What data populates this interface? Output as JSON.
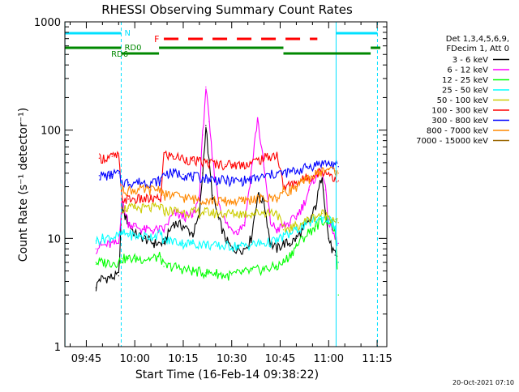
{
  "chart_data": {
    "type": "line",
    "title": "RHESSI Observing Summary Count Rates",
    "xlabel": "Start Time (16-Feb-14 09:38:22)",
    "ylabel": "Count Rate (s⁻¹ detector⁻¹)",
    "yscale": "log",
    "ylim": [
      1,
      1000
    ],
    "xlim_minutes": [
      "09:38",
      "11:18"
    ],
    "x_ticks": [
      "09:45",
      "10:00",
      "10:15",
      "10:30",
      "10:45",
      "11:00",
      "11:15"
    ],
    "y_ticks": [
      "1",
      "10",
      "100",
      "1000"
    ],
    "grid": false,
    "legend_position": "right",
    "legend_header": [
      "Det 1,3,4,5,6,9,",
      "FDecim 1, Att 0"
    ],
    "footer_date": "20-Oct-2021 07:10",
    "annotations": {
      "night": "N",
      "saa": "F",
      "rd0": "RD0",
      "rd6": "RD6"
    },
    "series": [
      {
        "name": "3 - 6 keV",
        "color": "#000000",
        "x": [
          "09:48",
          "09:49",
          "09:55",
          "09:56",
          "09:57",
          "09:58",
          "10:00",
          "10:03",
          "10:06",
          "10:09",
          "10:12",
          "10:15",
          "10:18",
          "10:20",
          "10:21",
          "10:22",
          "10:23",
          "10:24",
          "10:26",
          "10:28",
          "10:30",
          "10:32",
          "10:34",
          "10:36",
          "10:38",
          "10:40",
          "10:42",
          "10:44",
          "10:46",
          "10:48",
          "10:50",
          "10:52",
          "10:54",
          "10:56",
          "10:58",
          "10:59",
          "11:00",
          "11:01",
          "11:02",
          "11:03"
        ],
        "values": [
          3.5,
          4.2,
          4.5,
          20,
          16,
          14,
          11,
          10,
          9,
          9,
          14,
          13,
          11,
          16,
          40,
          110,
          50,
          25,
          15,
          10,
          8,
          8,
          8,
          10,
          25,
          22,
          9,
          8,
          9,
          9,
          10,
          12,
          14,
          20,
          40,
          18,
          10,
          8,
          7,
          6
        ]
      },
      {
        "name": "6 - 12 keV",
        "color": "#ff00ff",
        "x": [
          "09:48",
          "09:49",
          "09:55",
          "09:56",
          "09:57",
          "09:58",
          "10:00",
          "10:03",
          "10:06",
          "10:09",
          "10:12",
          "10:15",
          "10:18",
          "10:20",
          "10:21",
          "10:22",
          "10:23",
          "10:24",
          "10:26",
          "10:28",
          "10:30",
          "10:32",
          "10:34",
          "10:36",
          "10:38",
          "10:40",
          "10:42",
          "10:44",
          "10:46",
          "10:48",
          "10:50",
          "10:52",
          "10:54",
          "10:56",
          "10:58",
          "10:59",
          "11:00",
          "11:01",
          "11:02",
          "11:03"
        ],
        "values": [
          8,
          8.5,
          9,
          22,
          18,
          14,
          13,
          12,
          12,
          12,
          17,
          16,
          16,
          25,
          90,
          250,
          120,
          55,
          22,
          14,
          12,
          12,
          14,
          40,
          130,
          45,
          14,
          12,
          13,
          14,
          16,
          20,
          28,
          38,
          45,
          28,
          14,
          12,
          10,
          9
        ]
      },
      {
        "name": "12 - 25 keV",
        "color": "#00ff00",
        "x": [
          "09:48",
          "09:50",
          "09:55",
          "09:56",
          "09:58",
          "10:00",
          "10:05",
          "10:08",
          "10:09",
          "10:12",
          "10:15",
          "10:18",
          "10:22",
          "10:25",
          "10:28",
          "10:30",
          "10:33",
          "10:36",
          "10:40",
          "10:44",
          "10:46",
          "10:48",
          "10:50",
          "10:52",
          "10:54",
          "10:56",
          "10:58",
          "11:00",
          "11:02",
          "11:03"
        ],
        "values": [
          6,
          6,
          6,
          6.5,
          6.5,
          6.5,
          6.5,
          6.8,
          5.5,
          5.5,
          5.2,
          5,
          4.8,
          4.8,
          4.5,
          4.6,
          4.8,
          5,
          5.2,
          5.5,
          6,
          7,
          8.5,
          10,
          11.5,
          13,
          14.5,
          15,
          12,
          3
        ]
      },
      {
        "name": "25 - 50 keV",
        "color": "#00ffff",
        "x": [
          "09:48",
          "09:50",
          "09:55",
          "09:56",
          "09:58",
          "10:00",
          "10:05",
          "10:08",
          "10:09",
          "10:12",
          "10:15",
          "10:18",
          "10:22",
          "10:25",
          "10:28",
          "10:30",
          "10:33",
          "10:36",
          "10:40",
          "10:44",
          "10:46",
          "10:48",
          "10:50",
          "10:52",
          "10:54",
          "10:56",
          "10:58",
          "11:00",
          "11:02",
          "11:03"
        ],
        "values": [
          9.5,
          10,
          10.5,
          11,
          11,
          10.5,
          10.5,
          11,
          9.5,
          9.5,
          9,
          9,
          8.8,
          8.5,
          8.5,
          8.5,
          8.5,
          8.8,
          9,
          9.5,
          10.5,
          11,
          12,
          13,
          14,
          15,
          15.5,
          15,
          13,
          6
        ]
      },
      {
        "name": "50 - 100 keV",
        "color": "#cccc00",
        "x": [
          "09:48",
          "09:50",
          "09:55",
          "09:56",
          "09:58",
          "10:00",
          "10:05",
          "10:08",
          "10:09",
          "10:12",
          "10:15",
          "10:18",
          "10:22",
          "10:25",
          "10:28",
          "10:30",
          "10:33",
          "10:36",
          "10:40",
          "10:44",
          "10:46",
          "10:48",
          "10:50",
          "10:52",
          "10:54",
          "10:56",
          "10:58",
          "11:00",
          "11:02",
          "11:03"
        ],
        "values": [
          null,
          null,
          null,
          19,
          19,
          19,
          19,
          19.5,
          18,
          18,
          17.5,
          17.5,
          17.5,
          17,
          17,
          17,
          17,
          17,
          17.5,
          17.5,
          12,
          12.5,
          13,
          14,
          15,
          16,
          17,
          16,
          15,
          14
        ]
      },
      {
        "name": "100 - 300 keV",
        "color": "#ff0000",
        "x": [
          "09:48",
          "09:49",
          "09:52",
          "09:53",
          "09:55",
          "09:56",
          "09:58",
          "10:00",
          "10:05",
          "10:08",
          "10:09",
          "10:12",
          "10:15",
          "10:18",
          "10:22",
          "10:25",
          "10:28",
          "10:30",
          "10:33",
          "10:36",
          "10:40",
          "10:44",
          "10:46",
          "10:48",
          "10:50",
          "10:52",
          "10:54",
          "10:56",
          "10:58",
          "11:00",
          "11:02",
          "11:03"
        ],
        "values": [
          null,
          55,
          56,
          57,
          58,
          23,
          23,
          23,
          23,
          23,
          60,
          57,
          55,
          52,
          50,
          49,
          48,
          48,
          48,
          50,
          55,
          60,
          30,
          31,
          33,
          35,
          37,
          40,
          42,
          40,
          36,
          34
        ]
      },
      {
        "name": "300 - 800 keV",
        "color": "#0000ff",
        "x": [
          "09:48",
          "09:49",
          "09:52",
          "09:53",
          "09:55",
          "09:56",
          "09:58",
          "10:00",
          "10:05",
          "10:08",
          "10:09",
          "10:12",
          "10:15",
          "10:18",
          "10:22",
          "10:25",
          "10:28",
          "10:30",
          "10:33",
          "10:36",
          "10:40",
          "10:44",
          "10:46",
          "10:48",
          "10:50",
          "10:52",
          "10:54",
          "10:56",
          "10:58",
          "11:00",
          "11:02",
          "11:03"
        ],
        "values": [
          null,
          38,
          38,
          39,
          40,
          33,
          33,
          33,
          33,
          34,
          40,
          40,
          39,
          37,
          36,
          35,
          34,
          34,
          34,
          35,
          37,
          40,
          40,
          41,
          42,
          44,
          46,
          48,
          50,
          49,
          48,
          46
        ]
      },
      {
        "name": "800 - 7000 keV",
        "color": "#ff8800",
        "x": [
          "09:55",
          "09:56",
          "09:58",
          "10:00",
          "10:05",
          "10:08",
          "10:09",
          "10:12",
          "10:15",
          "10:18",
          "10:22",
          "10:25",
          "10:28",
          "10:30",
          "10:33",
          "10:36",
          "10:40",
          "10:44",
          "10:46",
          "10:48",
          "10:50",
          "10:52",
          "10:54",
          "10:56",
          "10:58",
          "11:00",
          "11:02",
          "11:03"
        ],
        "values": [
          null,
          28,
          28,
          28,
          28,
          29,
          25,
          25,
          24,
          23,
          23,
          22,
          22,
          22,
          22,
          23,
          23,
          24,
          27,
          28,
          30,
          33,
          36,
          39,
          42,
          44,
          42,
          40
        ]
      },
      {
        "name": "7000 - 15000 keV",
        "color": "#996600",
        "x": [],
        "values": []
      }
    ]
  }
}
